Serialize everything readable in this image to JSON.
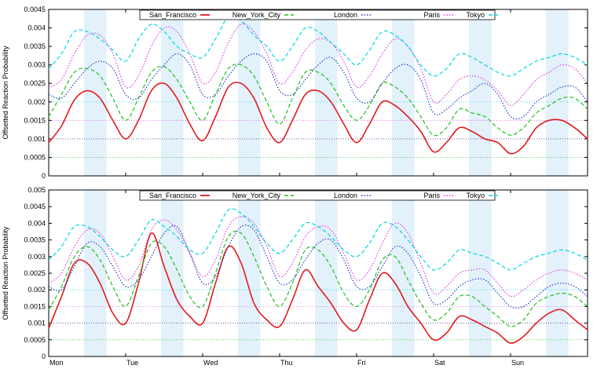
{
  "chart_data": [
    {
      "type": "line",
      "ylabel": "Offsetted Reaction Probability",
      "ylim": [
        0,
        0.0045
      ],
      "yticks": [
        0,
        0.0005,
        0.001,
        0.0015,
        0.002,
        0.0025,
        0.003,
        0.0035,
        0.004,
        0.0045
      ],
      "ytick_labels": [
        "0",
        "0.0005",
        "0.001",
        "0.0015",
        "0.002",
        "0.0025",
        "0.003",
        "0.0035",
        "0.004",
        "0.0045"
      ],
      "xlim": [
        0,
        168
      ],
      "x_unit": "hour of week",
      "x_tick_labels": [],
      "legend_position": "top-center",
      "shaded_bands": [
        [
          11,
          18
        ],
        [
          35,
          42
        ],
        [
          59,
          66
        ],
        [
          83,
          90
        ],
        [
          107,
          114
        ],
        [
          131,
          138
        ],
        [
          155,
          162
        ]
      ],
      "series": [
        {
          "name": "San_Francisco",
          "color": "#e31a1c",
          "style": "solid",
          "offset": 0.001,
          "x": [
            0,
            4,
            8,
            12,
            16,
            20,
            24,
            28,
            32,
            36,
            40,
            44,
            48,
            52,
            56,
            60,
            64,
            68,
            72,
            76,
            80,
            84,
            88,
            92,
            96,
            100,
            104,
            108,
            112,
            116,
            120,
            124,
            128,
            132,
            136,
            140,
            144,
            148,
            152,
            156,
            160,
            164,
            168
          ],
          "y": [
            0.0009,
            0.00135,
            0.00205,
            0.0023,
            0.0021,
            0.0015,
            0.001,
            0.0015,
            0.0023,
            0.0025,
            0.0021,
            0.0014,
            0.00095,
            0.0016,
            0.0024,
            0.0025,
            0.0021,
            0.0013,
            0.0009,
            0.0015,
            0.0022,
            0.0023,
            0.002,
            0.0014,
            0.0009,
            0.0014,
            0.002,
            0.0019,
            0.0016,
            0.0012,
            0.00065,
            0.0009,
            0.0013,
            0.0012,
            0.001,
            0.0009,
            0.0006,
            0.0008,
            0.0013,
            0.0015,
            0.0015,
            0.0013,
            0.001
          ]
        },
        {
          "name": "New_York_City",
          "color": "#1fbf1f",
          "style": "dashed",
          "offset": 0.0005,
          "x": [
            0,
            4,
            8,
            12,
            16,
            20,
            24,
            28,
            32,
            36,
            40,
            44,
            48,
            52,
            56,
            60,
            64,
            68,
            72,
            76,
            80,
            84,
            88,
            92,
            96,
            100,
            104,
            108,
            112,
            116,
            120,
            124,
            128,
            132,
            136,
            140,
            144,
            148,
            152,
            156,
            160,
            164,
            168
          ],
          "y": [
            0.0016,
            0.0022,
            0.0028,
            0.0029,
            0.0027,
            0.0021,
            0.0015,
            0.0021,
            0.0028,
            0.00295,
            0.0026,
            0.002,
            0.0015,
            0.0022,
            0.0029,
            0.003,
            0.0027,
            0.002,
            0.0014,
            0.0021,
            0.0028,
            0.0028,
            0.0025,
            0.0019,
            0.0015,
            0.0019,
            0.0025,
            0.0024,
            0.0021,
            0.0016,
            0.0011,
            0.0013,
            0.0018,
            0.0017,
            0.0016,
            0.0013,
            0.0011,
            0.0013,
            0.0017,
            0.0019,
            0.0021,
            0.0021,
            0.0018
          ]
        },
        {
          "name": "London",
          "color": "#1f3fbf",
          "style": "dotted",
          "offset": 0.001,
          "x": [
            0,
            4,
            8,
            12,
            16,
            20,
            24,
            28,
            32,
            36,
            40,
            44,
            48,
            52,
            56,
            60,
            64,
            68,
            72,
            76,
            80,
            84,
            88,
            92,
            96,
            100,
            104,
            108,
            112,
            116,
            120,
            124,
            128,
            132,
            136,
            140,
            144,
            148,
            152,
            156,
            160,
            164,
            168
          ],
          "y": [
            0.0022,
            0.0021,
            0.0025,
            0.0029,
            0.0031,
            0.0029,
            0.0022,
            0.0021,
            0.0026,
            0.003,
            0.0033,
            0.003,
            0.0022,
            0.0022,
            0.0027,
            0.0031,
            0.0033,
            0.0031,
            0.0023,
            0.0022,
            0.0026,
            0.003,
            0.0032,
            0.0028,
            0.0021,
            0.002,
            0.0025,
            0.0029,
            0.003,
            0.0026,
            0.0017,
            0.0018,
            0.0021,
            0.0023,
            0.0025,
            0.0022,
            0.0016,
            0.0016,
            0.002,
            0.0022,
            0.0024,
            0.0024,
            0.002
          ]
        },
        {
          "name": "Paris",
          "color": "#e040e0",
          "style": "dotted",
          "offset": 0.0015,
          "x": [
            0,
            4,
            8,
            12,
            16,
            20,
            24,
            28,
            32,
            36,
            40,
            44,
            48,
            52,
            56,
            60,
            64,
            68,
            72,
            76,
            80,
            84,
            88,
            92,
            96,
            100,
            104,
            108,
            112,
            116,
            120,
            124,
            128,
            132,
            136,
            140,
            144,
            148,
            152,
            156,
            160,
            164,
            168
          ],
          "y": [
            0.0024,
            0.0026,
            0.0033,
            0.0038,
            0.0038,
            0.0033,
            0.0024,
            0.0027,
            0.0035,
            0.004,
            0.0039,
            0.0033,
            0.0025,
            0.0028,
            0.0036,
            0.0041,
            0.0039,
            0.0033,
            0.0025,
            0.0028,
            0.0034,
            0.0037,
            0.0036,
            0.0031,
            0.0024,
            0.0027,
            0.0033,
            0.0037,
            0.0035,
            0.0029,
            0.002,
            0.0022,
            0.0026,
            0.0027,
            0.0026,
            0.0023,
            0.0019,
            0.0022,
            0.0026,
            0.0028,
            0.003,
            0.0029,
            0.0025
          ]
        },
        {
          "name": "Tokyo",
          "color": "#00d8e0",
          "style": "dashed",
          "offset": 0.002,
          "x": [
            0,
            4,
            8,
            12,
            16,
            20,
            24,
            28,
            32,
            36,
            40,
            44,
            48,
            52,
            56,
            60,
            64,
            68,
            72,
            76,
            80,
            84,
            88,
            92,
            96,
            100,
            104,
            108,
            112,
            116,
            120,
            124,
            128,
            132,
            136,
            140,
            144,
            148,
            152,
            156,
            160,
            164,
            168
          ],
          "y": [
            0.0029,
            0.0033,
            0.0039,
            0.0039,
            0.0037,
            0.0034,
            0.0031,
            0.0037,
            0.0041,
            0.0039,
            0.0035,
            0.0033,
            0.0032,
            0.0037,
            0.0043,
            0.0042,
            0.0038,
            0.0035,
            0.0031,
            0.0035,
            0.004,
            0.0039,
            0.0036,
            0.0033,
            0.003,
            0.0034,
            0.0039,
            0.0038,
            0.0035,
            0.003,
            0.0027,
            0.0029,
            0.0033,
            0.0032,
            0.003,
            0.0028,
            0.0027,
            0.0029,
            0.0031,
            0.0032,
            0.0033,
            0.0032,
            0.003
          ]
        }
      ]
    },
    {
      "type": "line",
      "ylabel": "Offsetted Reaction Probability",
      "ylim": [
        0,
        0.005
      ],
      "yticks": [
        0,
        0.0005,
        0.001,
        0.0015,
        0.002,
        0.0025,
        0.003,
        0.0035,
        0.004,
        0.0045,
        0.005
      ],
      "ytick_labels": [
        "0",
        "0.0005",
        "0.001",
        "0.0015",
        "0.002",
        "0.0025",
        "0.003",
        "0.0035",
        "0.004",
        "0.0045",
        "0.005"
      ],
      "xlim": [
        0,
        168
      ],
      "x_unit": "hour of week",
      "xticks": [
        0,
        24,
        48,
        72,
        96,
        120,
        144
      ],
      "x_tick_labels": [
        "Mon",
        "Tue",
        "Wed",
        "Thu",
        "Fri",
        "Sat",
        "Sun"
      ],
      "legend_position": "top-center",
      "shaded_bands": [
        [
          11,
          18
        ],
        [
          35,
          42
        ],
        [
          59,
          66
        ],
        [
          83,
          90
        ],
        [
          107,
          114
        ],
        [
          131,
          138
        ],
        [
          155,
          162
        ]
      ],
      "series": [
        {
          "name": "San_Francisco",
          "color": "#e31a1c",
          "style": "solid",
          "offset": 0.001,
          "x": [
            0,
            4,
            8,
            12,
            16,
            20,
            24,
            28,
            32,
            36,
            40,
            44,
            48,
            52,
            56,
            60,
            64,
            68,
            72,
            76,
            80,
            84,
            88,
            92,
            96,
            100,
            104,
            108,
            112,
            116,
            120,
            124,
            128,
            132,
            136,
            140,
            144,
            148,
            152,
            156,
            160,
            164,
            168
          ],
          "y": [
            0.00085,
            0.0018,
            0.0028,
            0.0028,
            0.0022,
            0.0013,
            0.001,
            0.0022,
            0.0037,
            0.0027,
            0.0017,
            0.0012,
            0.001,
            0.0022,
            0.0033,
            0.0028,
            0.0016,
            0.0011,
            0.0009,
            0.0017,
            0.0026,
            0.0021,
            0.0016,
            0.001,
            0.0008,
            0.0017,
            0.0025,
            0.0022,
            0.0015,
            0.001,
            0.0005,
            0.0007,
            0.0012,
            0.0011,
            0.0009,
            0.0007,
            0.0004,
            0.0006,
            0.001,
            0.0013,
            0.0014,
            0.0011,
            0.0008
          ]
        },
        {
          "name": "New_York_City",
          "color": "#1fbf1f",
          "style": "dashed",
          "offset": 0.0005,
          "x": [
            0,
            4,
            8,
            12,
            16,
            20,
            24,
            28,
            32,
            36,
            40,
            44,
            48,
            52,
            56,
            60,
            64,
            68,
            72,
            76,
            80,
            84,
            88,
            92,
            96,
            100,
            104,
            108,
            112,
            116,
            120,
            124,
            128,
            132,
            136,
            140,
            144,
            148,
            152,
            156,
            160,
            164,
            168
          ],
          "y": [
            0.0014,
            0.0021,
            0.003,
            0.0033,
            0.0029,
            0.0021,
            0.0015,
            0.0024,
            0.0034,
            0.0033,
            0.0026,
            0.0018,
            0.0015,
            0.0025,
            0.0036,
            0.0037,
            0.003,
            0.0021,
            0.0015,
            0.0022,
            0.0032,
            0.0032,
            0.0027,
            0.0019,
            0.0015,
            0.002,
            0.0029,
            0.003,
            0.0023,
            0.0016,
            0.0011,
            0.0013,
            0.0018,
            0.0018,
            0.0015,
            0.0012,
            0.0009,
            0.0011,
            0.0016,
            0.0018,
            0.0019,
            0.0018,
            0.0015
          ]
        },
        {
          "name": "London",
          "color": "#1f3fbf",
          "style": "dotted",
          "offset": 0.001,
          "x": [
            0,
            4,
            8,
            12,
            16,
            20,
            24,
            28,
            32,
            36,
            40,
            44,
            48,
            52,
            56,
            60,
            64,
            68,
            72,
            76,
            80,
            84,
            88,
            92,
            96,
            100,
            104,
            108,
            112,
            116,
            120,
            124,
            128,
            132,
            136,
            140,
            144,
            148,
            152,
            156,
            160,
            164,
            168
          ],
          "y": [
            0.0021,
            0.002,
            0.0027,
            0.0034,
            0.0033,
            0.0027,
            0.0021,
            0.0023,
            0.003,
            0.0037,
            0.0039,
            0.0031,
            0.0022,
            0.0024,
            0.0033,
            0.0039,
            0.0038,
            0.003,
            0.0022,
            0.0023,
            0.0029,
            0.0034,
            0.0035,
            0.0029,
            0.0021,
            0.0021,
            0.0027,
            0.0033,
            0.0031,
            0.0024,
            0.0016,
            0.0017,
            0.0021,
            0.0023,
            0.0023,
            0.0019,
            0.0015,
            0.0015,
            0.0018,
            0.0021,
            0.0022,
            0.0021,
            0.0018
          ]
        },
        {
          "name": "Paris",
          "color": "#e040e0",
          "style": "dotted",
          "offset": 0.0015,
          "x": [
            0,
            4,
            8,
            12,
            16,
            20,
            24,
            28,
            32,
            36,
            40,
            44,
            48,
            52,
            56,
            60,
            64,
            68,
            72,
            76,
            80,
            84,
            88,
            92,
            96,
            100,
            104,
            108,
            112,
            116,
            120,
            124,
            128,
            132,
            136,
            140,
            144,
            148,
            152,
            156,
            160,
            164,
            168
          ],
          "y": [
            0.0022,
            0.0025,
            0.0033,
            0.0038,
            0.0037,
            0.003,
            0.0023,
            0.0027,
            0.0038,
            0.0041,
            0.0038,
            0.0031,
            0.0024,
            0.0029,
            0.0039,
            0.0042,
            0.004,
            0.0033,
            0.0024,
            0.0028,
            0.0036,
            0.0039,
            0.0038,
            0.0031,
            0.0023,
            0.0026,
            0.0034,
            0.004,
            0.0037,
            0.0028,
            0.0019,
            0.0021,
            0.0025,
            0.0026,
            0.0026,
            0.0022,
            0.0018,
            0.002,
            0.0023,
            0.0025,
            0.0026,
            0.0025,
            0.0023
          ]
        },
        {
          "name": "Tokyo",
          "color": "#00d8e0",
          "style": "dashed",
          "offset": 0.002,
          "x": [
            0,
            4,
            8,
            12,
            16,
            20,
            24,
            28,
            32,
            36,
            40,
            44,
            48,
            52,
            56,
            60,
            64,
            68,
            72,
            76,
            80,
            84,
            88,
            92,
            96,
            100,
            104,
            108,
            112,
            116,
            120,
            124,
            128,
            132,
            136,
            140,
            144,
            148,
            152,
            156,
            160,
            164,
            168
          ],
          "y": [
            0.0029,
            0.0033,
            0.0039,
            0.0039,
            0.0036,
            0.0032,
            0.003,
            0.0035,
            0.0041,
            0.0039,
            0.0036,
            0.0032,
            0.0031,
            0.0037,
            0.0044,
            0.0043,
            0.0039,
            0.0034,
            0.0031,
            0.0035,
            0.004,
            0.0039,
            0.0036,
            0.0032,
            0.003,
            0.0034,
            0.004,
            0.0039,
            0.0035,
            0.003,
            0.0026,
            0.0028,
            0.0032,
            0.0031,
            0.003,
            0.0028,
            0.0026,
            0.0028,
            0.003,
            0.0031,
            0.0032,
            0.0031,
            0.0029
          ]
        }
      ]
    }
  ]
}
